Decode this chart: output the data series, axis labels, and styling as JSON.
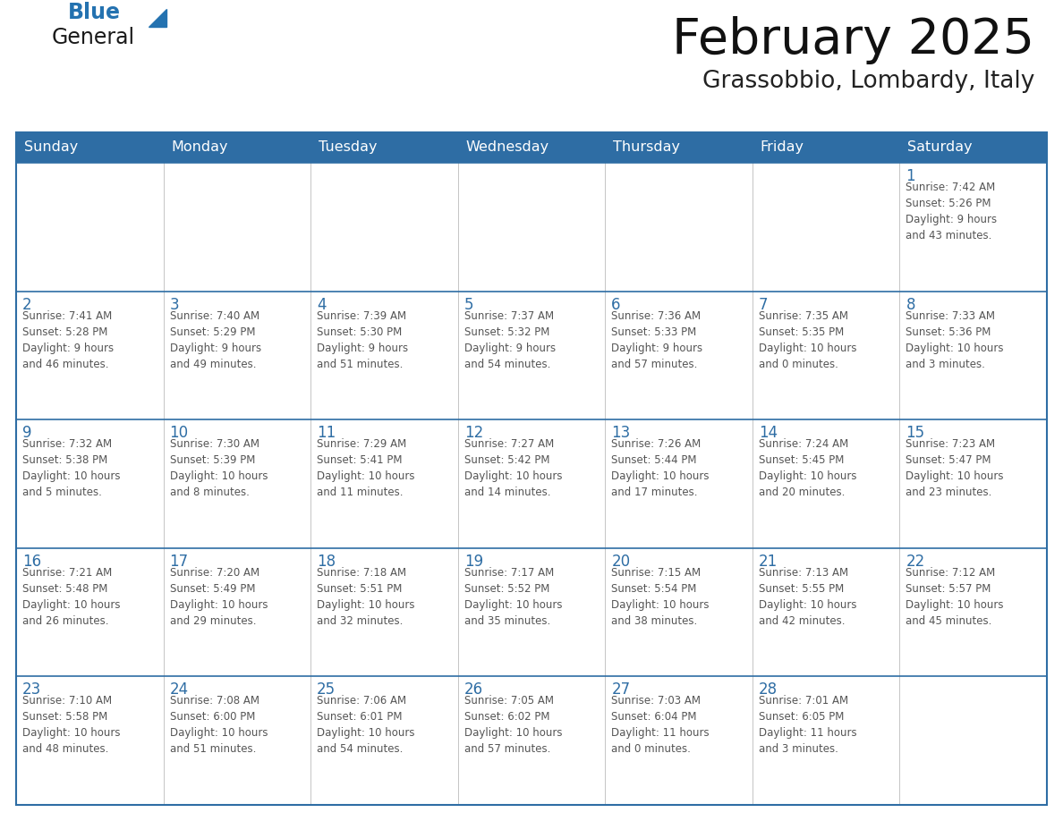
{
  "title": "February 2025",
  "subtitle": "Grassobbio, Lombardy, Italy",
  "header_bg": "#2E6DA4",
  "header_text": "#FFFFFF",
  "text_color": "#333333",
  "day_num_color": "#2E6DA4",
  "info_color": "#555555",
  "border_color": "#2E6DA4",
  "cell_bg": "#FFFFFF",
  "days_of_week": [
    "Sunday",
    "Monday",
    "Tuesday",
    "Wednesday",
    "Thursday",
    "Friday",
    "Saturday"
  ],
  "logo_general_color": "#1a1a1a",
  "logo_blue_color": "#2472B0",
  "fig_width": 11.88,
  "fig_height": 9.18,
  "dpi": 100,
  "calendar_data": [
    [
      {
        "day": "",
        "info": ""
      },
      {
        "day": "",
        "info": ""
      },
      {
        "day": "",
        "info": ""
      },
      {
        "day": "",
        "info": ""
      },
      {
        "day": "",
        "info": ""
      },
      {
        "day": "",
        "info": ""
      },
      {
        "day": "1",
        "info": "Sunrise: 7:42 AM\nSunset: 5:26 PM\nDaylight: 9 hours\nand 43 minutes."
      }
    ],
    [
      {
        "day": "2",
        "info": "Sunrise: 7:41 AM\nSunset: 5:28 PM\nDaylight: 9 hours\nand 46 minutes."
      },
      {
        "day": "3",
        "info": "Sunrise: 7:40 AM\nSunset: 5:29 PM\nDaylight: 9 hours\nand 49 minutes."
      },
      {
        "day": "4",
        "info": "Sunrise: 7:39 AM\nSunset: 5:30 PM\nDaylight: 9 hours\nand 51 minutes."
      },
      {
        "day": "5",
        "info": "Sunrise: 7:37 AM\nSunset: 5:32 PM\nDaylight: 9 hours\nand 54 minutes."
      },
      {
        "day": "6",
        "info": "Sunrise: 7:36 AM\nSunset: 5:33 PM\nDaylight: 9 hours\nand 57 minutes."
      },
      {
        "day": "7",
        "info": "Sunrise: 7:35 AM\nSunset: 5:35 PM\nDaylight: 10 hours\nand 0 minutes."
      },
      {
        "day": "8",
        "info": "Sunrise: 7:33 AM\nSunset: 5:36 PM\nDaylight: 10 hours\nand 3 minutes."
      }
    ],
    [
      {
        "day": "9",
        "info": "Sunrise: 7:32 AM\nSunset: 5:38 PM\nDaylight: 10 hours\nand 5 minutes."
      },
      {
        "day": "10",
        "info": "Sunrise: 7:30 AM\nSunset: 5:39 PM\nDaylight: 10 hours\nand 8 minutes."
      },
      {
        "day": "11",
        "info": "Sunrise: 7:29 AM\nSunset: 5:41 PM\nDaylight: 10 hours\nand 11 minutes."
      },
      {
        "day": "12",
        "info": "Sunrise: 7:27 AM\nSunset: 5:42 PM\nDaylight: 10 hours\nand 14 minutes."
      },
      {
        "day": "13",
        "info": "Sunrise: 7:26 AM\nSunset: 5:44 PM\nDaylight: 10 hours\nand 17 minutes."
      },
      {
        "day": "14",
        "info": "Sunrise: 7:24 AM\nSunset: 5:45 PM\nDaylight: 10 hours\nand 20 minutes."
      },
      {
        "day": "15",
        "info": "Sunrise: 7:23 AM\nSunset: 5:47 PM\nDaylight: 10 hours\nand 23 minutes."
      }
    ],
    [
      {
        "day": "16",
        "info": "Sunrise: 7:21 AM\nSunset: 5:48 PM\nDaylight: 10 hours\nand 26 minutes."
      },
      {
        "day": "17",
        "info": "Sunrise: 7:20 AM\nSunset: 5:49 PM\nDaylight: 10 hours\nand 29 minutes."
      },
      {
        "day": "18",
        "info": "Sunrise: 7:18 AM\nSunset: 5:51 PM\nDaylight: 10 hours\nand 32 minutes."
      },
      {
        "day": "19",
        "info": "Sunrise: 7:17 AM\nSunset: 5:52 PM\nDaylight: 10 hours\nand 35 minutes."
      },
      {
        "day": "20",
        "info": "Sunrise: 7:15 AM\nSunset: 5:54 PM\nDaylight: 10 hours\nand 38 minutes."
      },
      {
        "day": "21",
        "info": "Sunrise: 7:13 AM\nSunset: 5:55 PM\nDaylight: 10 hours\nand 42 minutes."
      },
      {
        "day": "22",
        "info": "Sunrise: 7:12 AM\nSunset: 5:57 PM\nDaylight: 10 hours\nand 45 minutes."
      }
    ],
    [
      {
        "day": "23",
        "info": "Sunrise: 7:10 AM\nSunset: 5:58 PM\nDaylight: 10 hours\nand 48 minutes."
      },
      {
        "day": "24",
        "info": "Sunrise: 7:08 AM\nSunset: 6:00 PM\nDaylight: 10 hours\nand 51 minutes."
      },
      {
        "day": "25",
        "info": "Sunrise: 7:06 AM\nSunset: 6:01 PM\nDaylight: 10 hours\nand 54 minutes."
      },
      {
        "day": "26",
        "info": "Sunrise: 7:05 AM\nSunset: 6:02 PM\nDaylight: 10 hours\nand 57 minutes."
      },
      {
        "day": "27",
        "info": "Sunrise: 7:03 AM\nSunset: 6:04 PM\nDaylight: 11 hours\nand 0 minutes."
      },
      {
        "day": "28",
        "info": "Sunrise: 7:01 AM\nSunset: 6:05 PM\nDaylight: 11 hours\nand 3 minutes."
      },
      {
        "day": "",
        "info": ""
      }
    ]
  ]
}
